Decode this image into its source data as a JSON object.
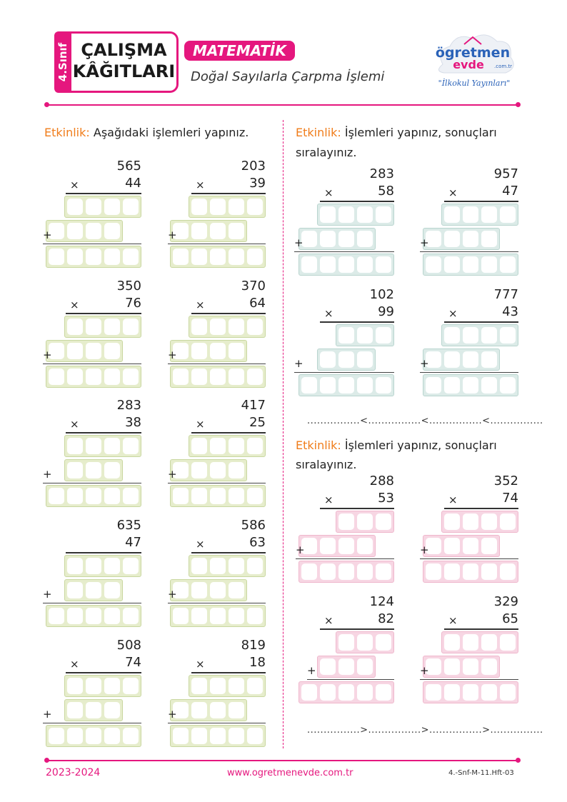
{
  "header": {
    "grade": "4.Sınıf",
    "title_line1": "ÇALIŞMA",
    "title_line2": "KÂĞITLARI",
    "subject": "MATEMATİK",
    "topic": "Doğal Sayılarla Çarpma İşlemi",
    "logo_name": "ögretmen",
    "logo_name2": "evde",
    "logo_domain": ".com.tr",
    "logo_tagline": "\"İlkokul Yayınları\""
  },
  "left": {
    "label": "Etkinlik:",
    "instruction": "Aşağıdaki işlemleri yapınız.",
    "problems": [
      {
        "a": "565",
        "b": "44",
        "op": "×"
      },
      {
        "a": "203",
        "b": "39",
        "op": "×"
      },
      {
        "a": "350",
        "b": "76",
        "op": "×"
      },
      {
        "a": "370",
        "b": "64",
        "op": "×"
      },
      {
        "a": "283",
        "b": "38",
        "op": "×"
      },
      {
        "a": "417",
        "b": "25",
        "op": "×"
      },
      {
        "a": "635",
        "b": "47",
        "op": ""
      },
      {
        "a": "586",
        "b": "63",
        "op": "×"
      },
      {
        "a": "508",
        "b": "74",
        "op": "×"
      },
      {
        "a": "819",
        "b": "18",
        "op": "×"
      }
    ]
  },
  "right1": {
    "label": "Etkinlik:",
    "instruction_line1": "İşlemleri yapınız, sonuçları",
    "instruction_line2": "sıralayınız.",
    "problems": [
      {
        "a": "283",
        "b": "58",
        "op": "×"
      },
      {
        "a": "957",
        "b": "47",
        "op": "×"
      },
      {
        "a": "102",
        "b": "99",
        "op": "×"
      },
      {
        "a": "777",
        "b": "43",
        "op": "×"
      }
    ],
    "order_line": "................<................<................<................"
  },
  "right2": {
    "label": "Etkinlik:",
    "instruction_line1": "İşlemleri yapınız, sonuçları",
    "instruction_line2": "sıralayınız.",
    "problems": [
      {
        "a": "288",
        "b": "53",
        "op": "×"
      },
      {
        "a": "352",
        "b": "74",
        "op": "×"
      },
      {
        "a": "124",
        "b": "82",
        "op": "×"
      },
      {
        "a": "329",
        "b": "65",
        "op": "×"
      }
    ],
    "order_line": "................>................>................>................"
  },
  "plus_sign": "+",
  "footer": {
    "year": "2023-2024",
    "website": "www.ogretmenevde.com.tr",
    "code": "4.-Snf-M-11.Hft-03"
  },
  "colors": {
    "accent": "#e5177e",
    "label": "#f07d1b",
    "green": "#e6edcc",
    "blue": "#dcebe8",
    "pink": "#f7d6e3"
  }
}
